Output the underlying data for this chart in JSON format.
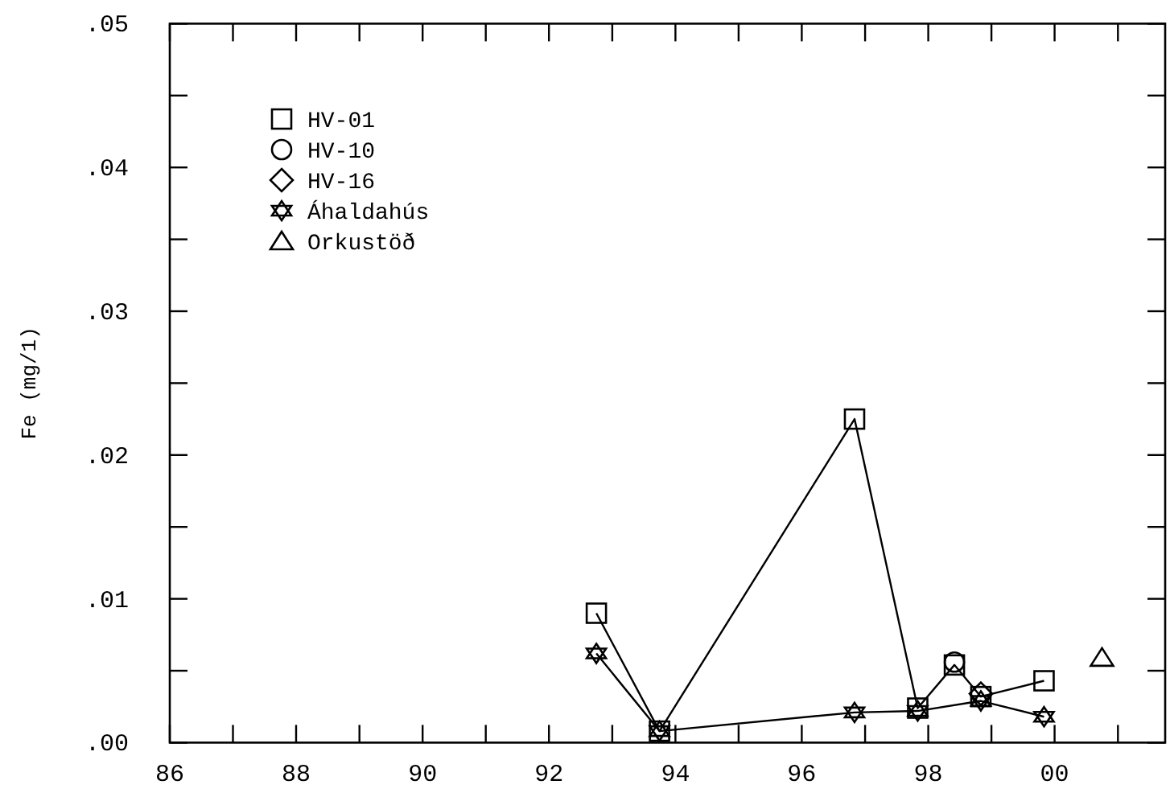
{
  "chart_data": {
    "type": "line",
    "ylabel": "Fe (mg/1)",
    "xlim": [
      "1986",
      "2001-10"
    ],
    "ylim": [
      0,
      0.05
    ],
    "xticks": [
      {
        "value": "1986",
        "label": "86"
      },
      {
        "value": "1987",
        "label": null
      },
      {
        "value": "1988",
        "label": "88"
      },
      {
        "value": "1989",
        "label": null
      },
      {
        "value": "1990",
        "label": "90"
      },
      {
        "value": "1991",
        "label": null
      },
      {
        "value": "1992",
        "label": "92"
      },
      {
        "value": "1993",
        "label": null
      },
      {
        "value": "1994",
        "label": "94"
      },
      {
        "value": "1995",
        "label": null
      },
      {
        "value": "1996",
        "label": "96"
      },
      {
        "value": "1997",
        "label": null
      },
      {
        "value": "1998",
        "label": "98"
      },
      {
        "value": "1999",
        "label": null
      },
      {
        "value": "2000",
        "label": "00"
      },
      {
        "value": "2001",
        "label": null
      }
    ],
    "yticks": [
      {
        "value": 0,
        "label": ".00"
      },
      {
        "value": 0.005,
        "label": null
      },
      {
        "value": 0.01,
        "label": ".01"
      },
      {
        "value": 0.015,
        "label": null
      },
      {
        "value": 0.02,
        "label": ".02"
      },
      {
        "value": 0.025,
        "label": null
      },
      {
        "value": 0.03,
        "label": ".03"
      },
      {
        "value": 0.035,
        "label": null
      },
      {
        "value": 0.04,
        "label": ".04"
      },
      {
        "value": 0.045,
        "label": null
      },
      {
        "value": 0.05,
        "label": ".05"
      }
    ],
    "grid": false,
    "legend": "top left",
    "series": [
      {
        "name": "HV-01",
        "color": "#000000",
        "marker": "square",
        "x": [
          "1992-10",
          "1993-10",
          "1996-11",
          "1997-11",
          "1998-06",
          "1998-11",
          "1999-11"
        ],
        "values": [
          0.009,
          0.0008,
          0.0225,
          0.0024,
          0.0054,
          0.0032,
          0.0043
        ]
      },
      {
        "name": "HV-10",
        "color": "#000000",
        "marker": "circle",
        "type": "scatter",
        "x": [
          "1998-06"
        ],
        "values": [
          0.0056
        ]
      },
      {
        "name": "HV-16",
        "color": "#000000",
        "marker": "diamond",
        "type": "scatter",
        "x": [
          "1998-11"
        ],
        "values": [
          0.0034
        ]
      },
      {
        "name": "Áhaldahús",
        "color": "#000000",
        "marker": "star",
        "x": [
          "1992-10",
          "1993-10",
          "1996-11",
          "1997-11",
          "1998-11",
          "1999-11"
        ],
        "values": [
          0.0062,
          0.0008,
          0.0021,
          0.0022,
          0.0029,
          0.0018
        ]
      },
      {
        "name": "Orkustöð",
        "color": "#000000",
        "marker": "triangle",
        "type": "scatter",
        "x": [
          "2000-10"
        ],
        "values": [
          0.0059
        ]
      }
    ]
  }
}
